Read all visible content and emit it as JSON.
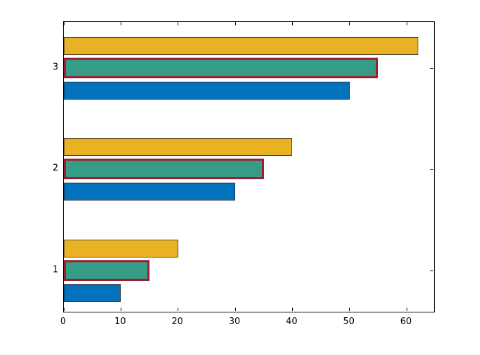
{
  "chart_data": {
    "type": "bar",
    "orientation": "horizontal",
    "title": "",
    "xlabel": "",
    "ylabel": "",
    "categories": [
      "3",
      "2",
      "1"
    ],
    "series": [
      {
        "name": "yellow-top-bar",
        "color": "#E9B124",
        "edge_color": "#47412F",
        "values": [
          62,
          40,
          20
        ]
      },
      {
        "name": "green-middle-bar",
        "color": "#359C85",
        "edge_color": "#A01D31",
        "values": [
          55,
          35,
          15
        ]
      },
      {
        "name": "blue-bottom-bar",
        "color": "#0272BD",
        "edge_color": "#1E2D3C",
        "values": [
          50,
          30,
          10
        ]
      }
    ],
    "x_tick_labels": [
      "0",
      "10",
      "20",
      "30",
      "40",
      "50",
      "60"
    ],
    "x_tick_values": [
      0,
      10,
      20,
      30,
      40,
      50,
      60
    ],
    "y_tick_labels": [
      "3",
      "2",
      "1"
    ],
    "xlim": [
      0,
      65
    ],
    "grid": false,
    "legend": "none",
    "background": "#FFFFFF",
    "spine_color": "#000000",
    "tick_style": "inward-all-four-spines"
  }
}
